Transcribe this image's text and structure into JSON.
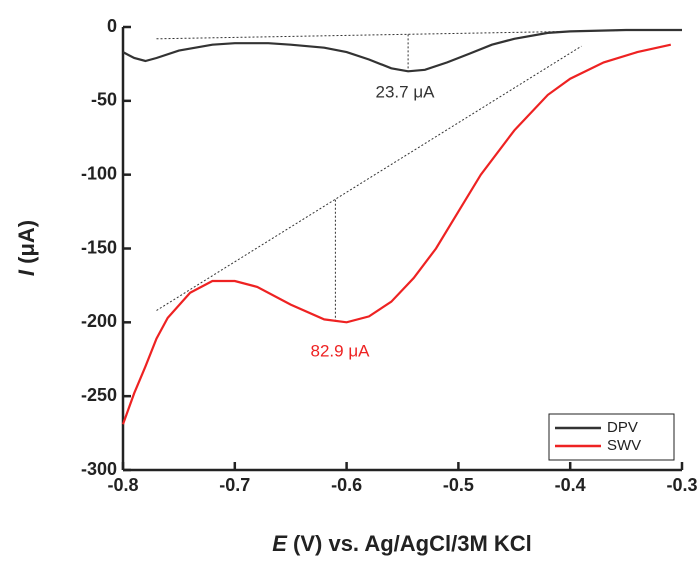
{
  "chart_data": {
    "type": "line",
    "x_label": [
      "E",
      " (V) vs. Ag/AgCl/3M KCl"
    ],
    "y_label": [
      "I",
      " (μA)"
    ],
    "xlim": [
      -0.8,
      -0.3
    ],
    "xticks": [
      -0.8,
      -0.7,
      -0.6,
      -0.5,
      -0.4,
      -0.3
    ],
    "ylim": [
      -300,
      0
    ],
    "yticks": [
      0,
      -50,
      -100,
      -150,
      -200,
      -250,
      -300
    ],
    "legend": "lower right",
    "series": [
      {
        "name": "DPV",
        "color": "#333333",
        "x": [
          -0.8,
          -0.79,
          -0.78,
          -0.77,
          -0.75,
          -0.72,
          -0.7,
          -0.67,
          -0.65,
          -0.62,
          -0.6,
          -0.58,
          -0.56,
          -0.545,
          -0.53,
          -0.51,
          -0.49,
          -0.47,
          -0.45,
          -0.42,
          -0.4,
          -0.35,
          -0.3
        ],
        "y": [
          -17,
          -21,
          -23,
          -21,
          -16,
          -12,
          -11,
          -11,
          -12,
          -14,
          -17,
          -22,
          -28,
          -30,
          -29,
          -24,
          -18,
          -12,
          -8,
          -4,
          -3,
          -2,
          -2
        ]
      },
      {
        "name": "SWV",
        "color": "#ee2222",
        "x": [
          -0.8,
          -0.79,
          -0.78,
          -0.77,
          -0.76,
          -0.74,
          -0.72,
          -0.7,
          -0.68,
          -0.65,
          -0.62,
          -0.6,
          -0.58,
          -0.56,
          -0.54,
          -0.52,
          -0.5,
          -0.48,
          -0.45,
          -0.42,
          -0.4,
          -0.37,
          -0.34,
          -0.31
        ],
        "y": [
          -269,
          -248,
          -230,
          -211,
          -197,
          -180,
          -172,
          -172,
          -176,
          -188,
          -198,
          -200,
          -196,
          -186,
          -170,
          -150,
          -125,
          -100,
          -70,
          -46,
          -35,
          -24,
          -17,
          -12
        ]
      }
    ],
    "reference_lines": [
      {
        "color": "#333333",
        "x": [
          -0.77,
          -0.33
        ],
        "y": [
          -8,
          -2
        ]
      },
      {
        "color": "#333333",
        "x": [
          -0.545,
          -0.545
        ],
        "y": [
          -5,
          -30
        ]
      },
      {
        "color": "#333333",
        "x": [
          -0.77,
          -0.39
        ],
        "y": [
          -192,
          -13
        ]
      },
      {
        "color": "#333333",
        "x": [
          -0.61,
          -0.61
        ],
        "y": [
          -117,
          -200
        ]
      }
    ],
    "annotations": [
      {
        "text": "23.7 μA",
        "color": "#333333"
      },
      {
        "text": "82.9 μA",
        "color": "#ee2222"
      }
    ]
  }
}
